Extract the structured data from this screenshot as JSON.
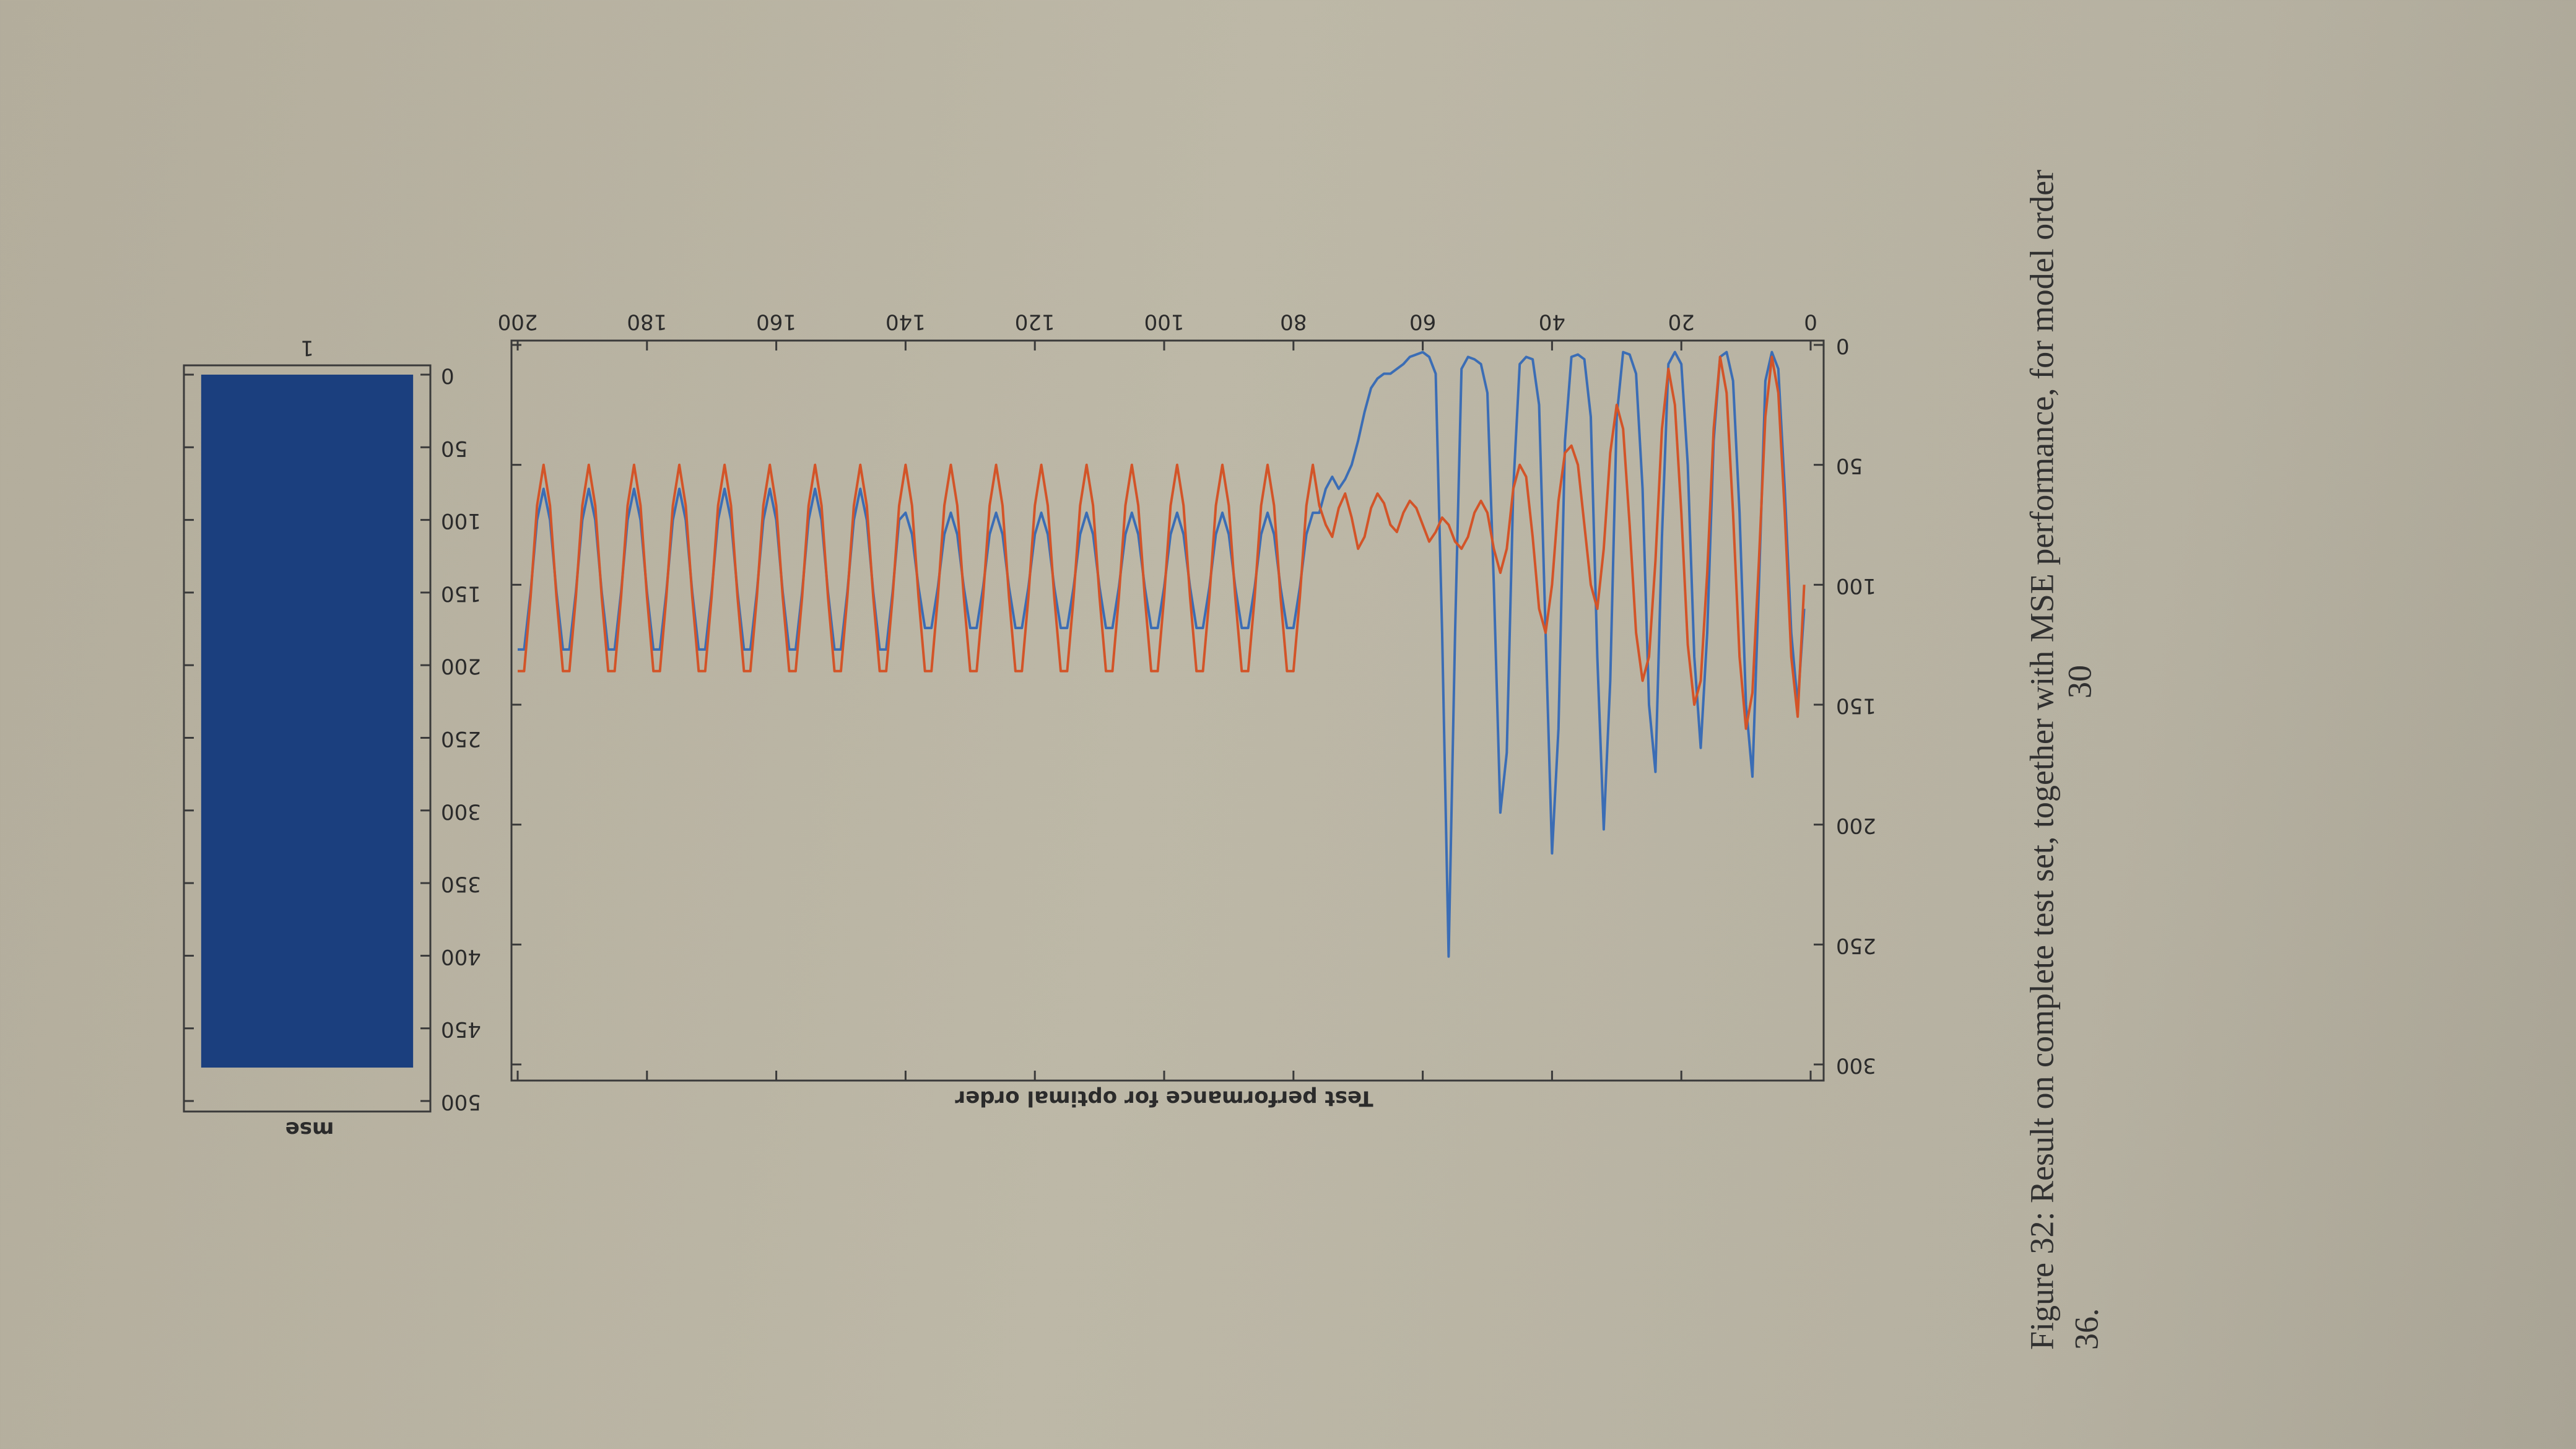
{
  "chart_data": [
    {
      "type": "line",
      "title": "Test performance for optimal order",
      "x": [
        1,
        2,
        3,
        4,
        5,
        6,
        7,
        8,
        9,
        10,
        11,
        12,
        13,
        14,
        15,
        16,
        17,
        18,
        19,
        20,
        21,
        22,
        23,
        24,
        25,
        26,
        27,
        28,
        29,
        30,
        31,
        32,
        33,
        34,
        35,
        36,
        37,
        38,
        39,
        40,
        41,
        42,
        43,
        44,
        45,
        46,
        47,
        48,
        49,
        50,
        51,
        52,
        53,
        54,
        55,
        56,
        57,
        58,
        59,
        60,
        61,
        62,
        63,
        64,
        65,
        66,
        67,
        68,
        69,
        70,
        71,
        72,
        73,
        74,
        75,
        76,
        77,
        78,
        79,
        80,
        81,
        82,
        83,
        84,
        85,
        86,
        87,
        88,
        89,
        90,
        91,
        92,
        93,
        94,
        95,
        96,
        97,
        98,
        99,
        100,
        101,
        102,
        103,
        104,
        105,
        106,
        107,
        108,
        109,
        110,
        111,
        112,
        113,
        114,
        115,
        116,
        117,
        118,
        119,
        120,
        121,
        122,
        123,
        124,
        125,
        126,
        127,
        128,
        129,
        130,
        131,
        132,
        133,
        134,
        135,
        136,
        137,
        138,
        139,
        140,
        141,
        142,
        143,
        144,
        145,
        146,
        147,
        148,
        149,
        150,
        151,
        152,
        153,
        154,
        155,
        156,
        157,
        158,
        159,
        160,
        161,
        162,
        163,
        164,
        165,
        166,
        167,
        168,
        169,
        170,
        171,
        172,
        173,
        174,
        175,
        176,
        177,
        178,
        179,
        180,
        181,
        182,
        183,
        184,
        185,
        186,
        187,
        188,
        189,
        190,
        191,
        192,
        193,
        194,
        195,
        196,
        197,
        198,
        199,
        200
      ],
      "series": [
        {
          "color": "#3b6db5",
          "values": [
            110,
            150,
            120,
            60,
            10,
            3,
            15,
            100,
            180,
            150,
            70,
            15,
            3,
            5,
            40,
            120,
            168,
            130,
            50,
            8,
            3,
            8,
            80,
            178,
            150,
            60,
            12,
            4,
            3,
            30,
            140,
            202,
            130,
            30,
            6,
            4,
            5,
            40,
            160,
            212,
            120,
            25,
            6,
            5,
            8,
            60,
            170,
            195,
            100,
            20,
            8,
            6,
            5,
            10,
            120,
            255,
            120,
            12,
            5,
            3,
            4,
            5,
            8,
            10,
            12,
            12,
            14,
            18,
            28,
            40,
            50,
            56,
            60,
            55,
            60,
            70,
            70,
            79,
            101,
            118,
            118,
            101,
            79,
            70,
            79,
            101,
            118,
            118,
            101,
            79,
            70,
            79,
            101,
            118,
            118,
            101,
            79,
            70,
            79,
            101,
            118,
            118,
            101,
            79,
            70,
            79,
            101,
            118,
            118,
            101,
            79,
            70,
            79,
            101,
            118,
            118,
            101,
            79,
            70,
            79,
            101,
            118,
            118,
            101,
            79,
            70,
            79,
            101,
            118,
            118,
            101,
            79,
            70,
            79,
            101,
            118,
            118,
            101,
            79,
            70,
            73,
            103,
            127,
            127,
            103,
            73,
            60,
            73,
            103,
            127,
            127,
            103,
            73,
            60,
            73,
            103,
            127,
            127,
            103,
            73,
            60,
            73,
            103,
            127,
            127,
            103,
            73,
            60,
            73,
            103,
            127,
            127,
            103,
            73,
            60,
            73,
            103,
            127,
            127,
            103,
            73,
            60,
            73,
            103,
            127,
            127,
            103,
            73,
            60,
            73,
            103,
            127,
            127,
            103,
            73,
            60,
            73,
            103,
            127,
            127
          ]
        },
        {
          "color": "#d35428",
          "values": [
            100,
            155,
            130,
            70,
            20,
            5,
            30,
            90,
            145,
            160,
            130,
            70,
            20,
            5,
            35,
            95,
            140,
            150,
            125,
            70,
            25,
            10,
            35,
            90,
            130,
            140,
            120,
            75,
            35,
            25,
            45,
            85,
            110,
            100,
            75,
            50,
            42,
            45,
            65,
            100,
            120,
            110,
            80,
            55,
            50,
            60,
            85,
            95,
            85,
            70,
            65,
            70,
            80,
            85,
            82,
            75,
            72,
            78,
            82,
            75,
            68,
            65,
            70,
            78,
            75,
            66,
            62,
            68,
            80,
            85,
            72,
            62,
            68,
            80,
            75,
            67,
            50,
            67,
            105,
            136,
            136,
            105,
            67,
            50,
            67,
            105,
            136,
            136,
            105,
            67,
            50,
            67,
            105,
            136,
            136,
            105,
            67,
            50,
            67,
            105,
            136,
            136,
            105,
            67,
            50,
            67,
            105,
            136,
            136,
            105,
            67,
            50,
            67,
            105,
            136,
            136,
            105,
            67,
            50,
            67,
            105,
            136,
            136,
            105,
            67,
            50,
            67,
            105,
            136,
            136,
            105,
            67,
            50,
            67,
            105,
            136,
            136,
            105,
            67,
            50,
            67,
            105,
            136,
            136,
            105,
            67,
            50,
            67,
            105,
            136,
            136,
            105,
            67,
            50,
            67,
            105,
            136,
            136,
            105,
            67,
            50,
            67,
            105,
            136,
            136,
            105,
            67,
            50,
            67,
            105,
            136,
            136,
            105,
            67,
            50,
            67,
            105,
            136,
            136,
            105,
            67,
            50,
            67,
            105,
            136,
            136,
            105,
            67,
            50,
            67,
            105,
            136,
            136,
            105,
            67,
            50,
            67,
            105,
            136,
            136
          ]
        }
      ],
      "xlim": [
        0,
        200
      ],
      "xticks": [
        0,
        20,
        40,
        60,
        80,
        100,
        120,
        140,
        160,
        180,
        200
      ],
      "ylim": [
        0,
        300
      ],
      "yticks": [
        0,
        50,
        100,
        150,
        200,
        250,
        300
      ]
    },
    {
      "type": "bar",
      "title": "mse",
      "categories": [
        "1"
      ],
      "values": [
        477
      ],
      "color": "#1b3f7e",
      "ylim": [
        0,
        500
      ],
      "yticks": [
        0,
        50,
        100,
        150,
        200,
        250,
        300,
        350,
        400,
        450,
        500
      ]
    }
  ],
  "caption": [
    "Figure 32: Result on complete test set, together with MSE performance, for model order",
    "36."
  ],
  "page_number": "30"
}
